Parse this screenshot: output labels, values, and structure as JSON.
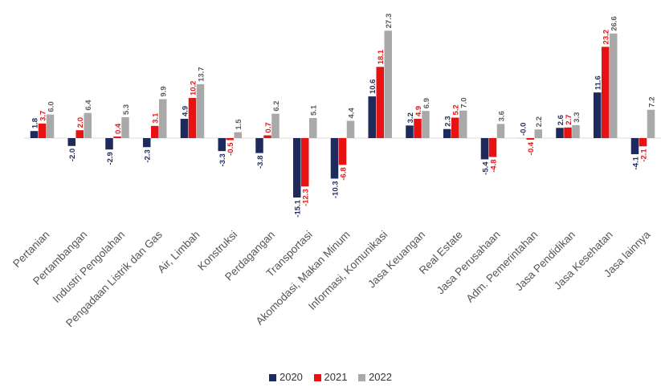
{
  "chart_data": {
    "type": "bar",
    "title": "",
    "xlabel": "",
    "ylabel": "",
    "categories": [
      "Pertanian",
      "Pertambangan",
      "Industri Pengolahan",
      "Pengadaan Listrik dan Gas",
      "Air, Limbah",
      "Konstruksi",
      "Perdagangan",
      "Transportasi",
      "Akomodasi, Makan Minum",
      "Informasi, Komunikasi",
      "Jasa Keuangan",
      "Real Estate",
      "Jasa Perusahaan",
      "Adm. Pemerintahan",
      "Jasa Pendidikan",
      "Jasa Kesehatan",
      "Jasa lainnya"
    ],
    "series": [
      {
        "name": "2020",
        "color": "#1f2a5c",
        "label_color": "#1f2a5c",
        "values": [
          1.8,
          -2.0,
          -2.9,
          -2.3,
          4.9,
          -3.3,
          -3.8,
          -15.1,
          -10.3,
          10.6,
          3.2,
          2.3,
          -5.4,
          -0.0,
          2.6,
          11.6,
          -4.1
        ],
        "labels": [
          "1.8",
          "-2.0",
          "-2.9",
          "-2.3",
          "4.9",
          "-3.3",
          "-3.8",
          "-15.1",
          "-10.3",
          "10.6",
          "3.2",
          "2.3",
          "-5.4",
          "-0.0",
          "2.6",
          "11.6",
          "-4.1"
        ]
      },
      {
        "name": "2021",
        "color": "#e81212",
        "label_color": "#e81212",
        "values": [
          3.7,
          2.0,
          0.4,
          3.1,
          10.2,
          -0.5,
          0.7,
          -12.3,
          -6.8,
          18.1,
          4.9,
          5.2,
          -4.8,
          -0.4,
          2.7,
          23.2,
          -2.1
        ],
        "labels": [
          "3.7",
          "2.0",
          "0.4",
          "3.1",
          "10.2",
          "-0.5",
          "0.7",
          "-12.3",
          "-6.8",
          "18.1",
          "4.9",
          "5.2",
          "-4.8",
          "-0.4",
          "2.7",
          "23.2",
          "-2.1"
        ]
      },
      {
        "name": "2022",
        "color": "#a9a9a9",
        "label_color": "#595959",
        "values": [
          6.0,
          6.4,
          5.3,
          9.9,
          13.7,
          1.5,
          6.2,
          5.1,
          4.4,
          27.3,
          6.9,
          7.0,
          3.6,
          2.2,
          3.3,
          26.6,
          7.2
        ],
        "labels": [
          "6.0",
          "6.4",
          "5.3",
          "9.9",
          "13.7",
          "1.5",
          "6.2",
          "5.1",
          "4.4",
          "27.3",
          "6.9",
          "7.0",
          "3.6",
          "2.2",
          "3.3",
          "26.6",
          "7.2"
        ]
      }
    ],
    "grid": false,
    "legend_position": "bottom"
  }
}
